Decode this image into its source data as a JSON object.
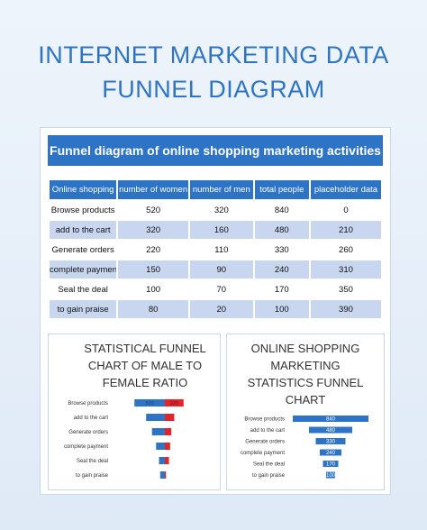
{
  "page": {
    "title_line1": "INTERNET MARKETING DATA",
    "title_line2": "FUNNEL DIAGRAM"
  },
  "table": {
    "banner": "Funnel diagram of online shopping marketing activities",
    "headers": [
      "Online shopping",
      "number of women",
      "number of men",
      "total people",
      "placeholder data"
    ],
    "rows": [
      [
        "Browse products",
        "520",
        "320",
        "840",
        "0"
      ],
      [
        "add to the cart",
        "320",
        "160",
        "480",
        "210"
      ],
      [
        "Generate orders",
        "220",
        "110",
        "330",
        "260"
      ],
      [
        "complete payment",
        "150",
        "90",
        "240",
        "310"
      ],
      [
        "Seal the deal",
        "100",
        "70",
        "170",
        "350"
      ],
      [
        "to gain praise",
        "80",
        "20",
        "100",
        "390"
      ]
    ]
  },
  "colors": {
    "accent": "#2e74c6",
    "women": "#2e74c6",
    "men": "#e3252b",
    "stripe": "#c8d7ef"
  },
  "chart_data": [
    {
      "type": "bar",
      "title": "STATISTICAL FUNNEL CHART OF MALE TO FEMALE RATIO",
      "title_lines": [
        "STATISTICAL FUNNEL",
        "CHART OF MALE TO",
        "FEMALE RATIO"
      ],
      "categories": [
        "Browse products",
        "add to the cart",
        "Generate orders",
        "complete payment",
        "Seal the deal",
        "to gain praise"
      ],
      "series": [
        {
          "values": [
            520,
            320,
            220,
            150,
            100,
            80
          ]
        },
        {
          "values": [
            320,
            160,
            110,
            90,
            70,
            20
          ]
        }
      ],
      "data_labels": [
        "520",
        "320"
      ]
    },
    {
      "type": "bar",
      "title": "ONLINE SHOPPING MARKETING STATISTICS FUNNEL CHART",
      "title_lines": [
        "ONLINE SHOPPING",
        "MARKETING",
        "STATISTICS FUNNEL",
        "CHART"
      ],
      "categories": [
        "Browse products",
        "add to the cart",
        "Generate orders",
        "complete payment",
        "Seal the deal",
        "to gain praise"
      ],
      "series": [
        {
          "values": [
            840,
            480,
            330,
            240,
            170,
            100
          ]
        }
      ]
    }
  ]
}
